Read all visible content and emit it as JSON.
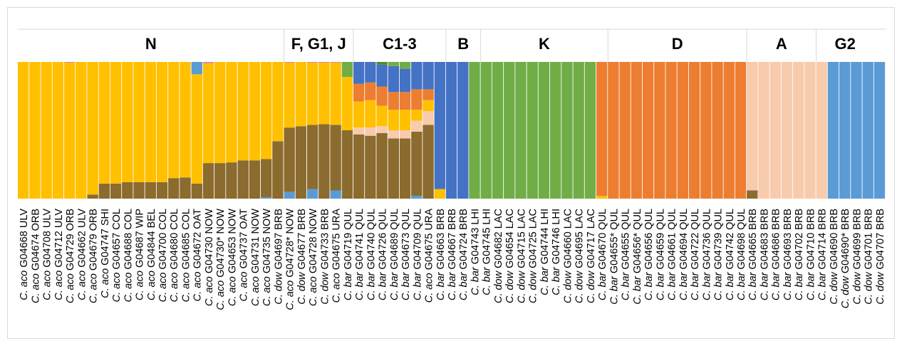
{
  "chart_data": {
    "type": "bar",
    "stacked": true,
    "normalized": true,
    "ylim": [
      0,
      1
    ],
    "colors": {
      "brown": "#8B6B2E",
      "yellow": "#FFC000",
      "lightblue": "#5B9BD5",
      "midblue": "#4472C4",
      "orange": "#ED7D31",
      "peach": "#F8CBAD",
      "green": "#70AD47",
      "darkgreen": "#4E8C2A",
      "pink": "#E2849C"
    },
    "groups": [
      {
        "label": "N",
        "start": 0,
        "end": 22
      },
      {
        "label": "F, G1, J",
        "start": 23,
        "end": 28
      },
      {
        "label": "C1-3",
        "start": 29,
        "end": 36
      },
      {
        "label": "B",
        "start": 37,
        "end": 39
      },
      {
        "label": "K",
        "start": 40,
        "end": 50
      },
      {
        "label": "D",
        "start": 51,
        "end": 62
      },
      {
        "label": "A",
        "start": 63,
        "end": 68
      },
      {
        "label": "G2",
        "start": 69,
        "end": 73
      }
    ],
    "samples": [
      {
        "sp": "aco",
        "id": "G04668",
        "pop": "ULV",
        "comp": [
          [
            "yellow",
            1.0
          ]
        ]
      },
      {
        "sp": "aco",
        "id": "G04674",
        "pop": "ORB",
        "comp": [
          [
            "yellow",
            1.0
          ]
        ]
      },
      {
        "sp": "aco",
        "id": "G04708",
        "pop": "ULV",
        "comp": [
          [
            "yellow",
            1.0
          ]
        ]
      },
      {
        "sp": "aco",
        "id": "G04712",
        "pop": "ULV",
        "comp": [
          [
            "yellow",
            1.0
          ]
        ]
      },
      {
        "sp": "aco",
        "id": "G04729",
        "pop": "ORB",
        "comp": [
          [
            "yellow",
            0.995
          ],
          [
            "pink",
            0.005
          ]
        ]
      },
      {
        "sp": "aco",
        "id": "G04662",
        "pop": "ULV",
        "comp": [
          [
            "yellow",
            1.0
          ]
        ]
      },
      {
        "sp": "aco",
        "id": "G04679",
        "pop": "ORB",
        "comp": [
          [
            "brown",
            0.03
          ],
          [
            "yellow",
            0.97
          ]
        ]
      },
      {
        "sp": "aco",
        "id": "G04747",
        "pop": "SHI",
        "comp": [
          [
            "brown",
            0.11
          ],
          [
            "yellow",
            0.89
          ]
        ]
      },
      {
        "sp": "aco",
        "id": "G04657",
        "pop": "COL",
        "comp": [
          [
            "brown",
            0.11
          ],
          [
            "yellow",
            0.89
          ]
        ]
      },
      {
        "sp": "aco",
        "id": "G04688",
        "pop": "COL",
        "comp": [
          [
            "brown",
            0.12
          ],
          [
            "yellow",
            0.88
          ]
        ]
      },
      {
        "sp": "aco",
        "id": "G04687",
        "pop": "WIP",
        "comp": [
          [
            "brown",
            0.12
          ],
          [
            "yellow",
            0.88
          ]
        ]
      },
      {
        "sp": "aco",
        "id": "G04844",
        "pop": "BEL",
        "comp": [
          [
            "brown",
            0.12
          ],
          [
            "yellow",
            0.88
          ]
        ]
      },
      {
        "sp": "aco",
        "id": "G04700",
        "pop": "COL",
        "comp": [
          [
            "brown",
            0.12
          ],
          [
            "yellow",
            0.88
          ]
        ]
      },
      {
        "sp": "aco",
        "id": "G04680",
        "pop": "COL",
        "comp": [
          [
            "brown",
            0.15
          ],
          [
            "yellow",
            0.85
          ]
        ]
      },
      {
        "sp": "aco",
        "id": "G04685",
        "pop": "COL",
        "comp": [
          [
            "brown",
            0.155
          ],
          [
            "yellow",
            0.845
          ]
        ]
      },
      {
        "sp": "aco",
        "id": "G04672",
        "pop": "OAT",
        "comp": [
          [
            "brown",
            0.11
          ],
          [
            "yellow",
            0.8
          ],
          [
            "lightblue",
            0.09
          ]
        ]
      },
      {
        "sp": "aco",
        "id": "G04730",
        "pop": "NOW",
        "comp": [
          [
            "brown",
            0.26
          ],
          [
            "yellow",
            0.73
          ],
          [
            "pink",
            0.01
          ]
        ]
      },
      {
        "sp": "aco",
        "id": "G04730*",
        "pop": "NOW",
        "comp": [
          [
            "brown",
            0.26
          ],
          [
            "yellow",
            0.74
          ]
        ]
      },
      {
        "sp": "aco",
        "id": "G04653",
        "pop": "NOW",
        "comp": [
          [
            "brown",
            0.265
          ],
          [
            "yellow",
            0.735
          ]
        ]
      },
      {
        "sp": "aco",
        "id": "G04737",
        "pop": "OAT",
        "comp": [
          [
            "brown",
            0.28
          ],
          [
            "yellow",
            0.72
          ]
        ]
      },
      {
        "sp": "aco",
        "id": "G04731",
        "pop": "NOW",
        "comp": [
          [
            "brown",
            0.28
          ],
          [
            "yellow",
            0.72
          ]
        ]
      },
      {
        "sp": "aco",
        "id": "G04735",
        "pop": "NOW",
        "comp": [
          [
            "lightblue",
            0.01
          ],
          [
            "brown",
            0.28
          ],
          [
            "yellow",
            0.71
          ]
        ]
      },
      {
        "sp": "dow",
        "id": "G04697",
        "pop": "BRB",
        "comp": [
          [
            "brown",
            0.42
          ],
          [
            "yellow",
            0.58
          ]
        ]
      },
      {
        "sp": "aco",
        "id": "G04728*",
        "pop": "NOW",
        "comp": [
          [
            "lightblue",
            0.05
          ],
          [
            "brown",
            0.47
          ],
          [
            "yellow",
            0.475
          ],
          [
            "pink",
            0.005
          ]
        ]
      },
      {
        "sp": "dow",
        "id": "G04677",
        "pop": "BRB",
        "comp": [
          [
            "brown",
            0.53
          ],
          [
            "yellow",
            0.47
          ]
        ]
      },
      {
        "sp": "aco",
        "id": "G04728",
        "pop": "NOW",
        "comp": [
          [
            "lightblue",
            0.07
          ],
          [
            "brown",
            0.47
          ],
          [
            "yellow",
            0.455
          ],
          [
            "pink",
            0.005
          ]
        ]
      },
      {
        "sp": "dow",
        "id": "G04733",
        "pop": "BRB",
        "comp": [
          [
            "brown",
            0.545
          ],
          [
            "yellow",
            0.45
          ],
          [
            "pink",
            0.005
          ]
        ]
      },
      {
        "sp": "aco",
        "id": "G04675",
        "pop": "URA",
        "comp": [
          [
            "lightblue",
            0.06
          ],
          [
            "brown",
            0.48
          ],
          [
            "yellow",
            0.455
          ],
          [
            "pink",
            0.005
          ]
        ]
      },
      {
        "sp": "bar",
        "id": "G04719",
        "pop": "QUL",
        "comp": [
          [
            "brown",
            0.5
          ],
          [
            "yellow",
            0.39
          ],
          [
            "green",
            0.11
          ]
        ]
      },
      {
        "sp": "bar",
        "id": "G04741",
        "pop": "QUL",
        "comp": [
          [
            "brown",
            0.47
          ],
          [
            "peach",
            0.05
          ],
          [
            "yellow",
            0.19
          ],
          [
            "orange",
            0.13
          ],
          [
            "midblue",
            0.16
          ]
        ]
      },
      {
        "sp": "bar",
        "id": "G04740",
        "pop": "QUL",
        "comp": [
          [
            "brown",
            0.46
          ],
          [
            "peach",
            0.06
          ],
          [
            "yellow",
            0.2
          ],
          [
            "orange",
            0.13
          ],
          [
            "midblue",
            0.15
          ]
        ]
      },
      {
        "sp": "bar",
        "id": "G04726",
        "pop": "QUL",
        "comp": [
          [
            "brown",
            0.48
          ],
          [
            "peach",
            0.05
          ],
          [
            "yellow",
            0.15
          ],
          [
            "orange",
            0.14
          ],
          [
            "midblue",
            0.16
          ],
          [
            "darkgreen",
            0.02
          ]
        ]
      },
      {
        "sp": "bar",
        "id": "G04689",
        "pop": "QUL",
        "comp": [
          [
            "brown",
            0.44
          ],
          [
            "peach",
            0.06
          ],
          [
            "yellow",
            0.15
          ],
          [
            "orange",
            0.13
          ],
          [
            "midblue",
            0.19
          ],
          [
            "green",
            0.03
          ]
        ]
      },
      {
        "sp": "bar",
        "id": "G04673",
        "pop": "QUL",
        "comp": [
          [
            "brown",
            0.44
          ],
          [
            "peach",
            0.06
          ],
          [
            "yellow",
            0.15
          ],
          [
            "orange",
            0.13
          ],
          [
            "midblue",
            0.17
          ],
          [
            "green",
            0.05
          ]
        ]
      },
      {
        "sp": "bar",
        "id": "G04709",
        "pop": "QUL",
        "comp": [
          [
            "lightblue",
            0.02
          ],
          [
            "brown",
            0.47
          ],
          [
            "peach",
            0.08
          ],
          [
            "yellow",
            0.08
          ],
          [
            "orange",
            0.15
          ],
          [
            "midblue",
            0.2
          ]
        ]
      },
      {
        "sp": "aco",
        "id": "G04675",
        "pop": "URA",
        "comp": [
          [
            "brown",
            0.54
          ],
          [
            "peach",
            0.1
          ],
          [
            "yellow",
            0.08
          ],
          [
            "orange",
            0.08
          ],
          [
            "midblue",
            0.2
          ]
        ]
      },
      {
        "sp": "bar",
        "id": "G04663",
        "pop": "BRB",
        "comp": [
          [
            "yellow",
            0.07
          ],
          [
            "midblue",
            0.93
          ]
        ]
      },
      {
        "sp": "bar",
        "id": "G04667",
        "pop": "BRB",
        "comp": [
          [
            "midblue",
            1.0
          ]
        ]
      },
      {
        "sp": "bar",
        "id": "G04724",
        "pop": "BRB",
        "comp": [
          [
            "midblue",
            1.0
          ]
        ]
      },
      {
        "sp": "bar",
        "id": "G04743",
        "pop": "LHI",
        "comp": [
          [
            "green",
            1.0
          ]
        ]
      },
      {
        "sp": "bar",
        "id": "G04745",
        "pop": "LHI",
        "comp": [
          [
            "green",
            1.0
          ]
        ]
      },
      {
        "sp": "dow",
        "id": "G04682",
        "pop": "LAC",
        "comp": [
          [
            "green",
            1.0
          ]
        ]
      },
      {
        "sp": "dow",
        "id": "G04654",
        "pop": "LAC",
        "comp": [
          [
            "green",
            1.0
          ]
        ]
      },
      {
        "sp": "dow",
        "id": "G04715",
        "pop": "LAC",
        "comp": [
          [
            "green",
            1.0
          ]
        ]
      },
      {
        "sp": "dow",
        "id": "G04725",
        "pop": "LAC",
        "comp": [
          [
            "green",
            1.0
          ]
        ]
      },
      {
        "sp": "bar",
        "id": "G04744",
        "pop": "LHI",
        "comp": [
          [
            "green",
            1.0
          ]
        ]
      },
      {
        "sp": "bar",
        "id": "G04746",
        "pop": "LHI",
        "comp": [
          [
            "green",
            1.0
          ]
        ]
      },
      {
        "sp": "dow",
        "id": "G04660",
        "pop": "LAC",
        "comp": [
          [
            "green",
            1.0
          ]
        ]
      },
      {
        "sp": "dow",
        "id": "G04695",
        "pop": "LAC",
        "comp": [
          [
            "green",
            1.0
          ]
        ]
      },
      {
        "sp": "dow",
        "id": "G04717",
        "pop": "LAC",
        "comp": [
          [
            "green",
            1.0
          ]
        ]
      },
      {
        "sp": "bar",
        "id": "G04670",
        "pop": "QUL",
        "comp": [
          [
            "yellow",
            0.02
          ],
          [
            "orange",
            0.98
          ]
        ]
      },
      {
        "sp": "bar",
        "id": "G04655*",
        "pop": "QUL",
        "comp": [
          [
            "orange",
            1.0
          ]
        ]
      },
      {
        "sp": "bar",
        "id": "G04655",
        "pop": "QUL",
        "comp": [
          [
            "orange",
            1.0
          ]
        ]
      },
      {
        "sp": "bar",
        "id": "G04656*",
        "pop": "QUL",
        "comp": [
          [
            "orange",
            1.0
          ]
        ]
      },
      {
        "sp": "bar",
        "id": "G04656",
        "pop": "QUL",
        "comp": [
          [
            "orange",
            1.0
          ]
        ]
      },
      {
        "sp": "bar",
        "id": "G04659",
        "pop": "QUL",
        "comp": [
          [
            "orange",
            1.0
          ]
        ]
      },
      {
        "sp": "bar",
        "id": "G04661",
        "pop": "QUL",
        "comp": [
          [
            "orange",
            1.0
          ]
        ]
      },
      {
        "sp": "bar",
        "id": "G04694",
        "pop": "QUL",
        "comp": [
          [
            "orange",
            1.0
          ]
        ]
      },
      {
        "sp": "bar",
        "id": "G04722",
        "pop": "QUL",
        "comp": [
          [
            "orange",
            1.0
          ]
        ]
      },
      {
        "sp": "bar",
        "id": "G04736",
        "pop": "QUL",
        "comp": [
          [
            "orange",
            1.0
          ]
        ]
      },
      {
        "sp": "bar",
        "id": "G04739",
        "pop": "QUL",
        "comp": [
          [
            "orange",
            1.0
          ]
        ]
      },
      {
        "sp": "bar",
        "id": "G04742",
        "pop": "QUL",
        "comp": [
          [
            "orange",
            1.0
          ]
        ]
      },
      {
        "sp": "bar",
        "id": "G04698",
        "pop": "QUL",
        "comp": [
          [
            "orange",
            1.0
          ]
        ]
      },
      {
        "sp": "bar",
        "id": "G04665",
        "pop": "BRB",
        "comp": [
          [
            "brown",
            0.06
          ],
          [
            "peach",
            0.94
          ]
        ]
      },
      {
        "sp": "bar",
        "id": "G04683",
        "pop": "BRB",
        "comp": [
          [
            "peach",
            1.0
          ]
        ]
      },
      {
        "sp": "bar",
        "id": "G04686",
        "pop": "BRB",
        "comp": [
          [
            "peach",
            1.0
          ]
        ]
      },
      {
        "sp": "bar",
        "id": "G04693",
        "pop": "BRB",
        "comp": [
          [
            "peach",
            1.0
          ]
        ]
      },
      {
        "sp": "bar",
        "id": "G04702",
        "pop": "BRB",
        "comp": [
          [
            "peach",
            1.0
          ]
        ]
      },
      {
        "sp": "bar",
        "id": "G04710",
        "pop": "BRB",
        "comp": [
          [
            "peach",
            1.0
          ]
        ]
      },
      {
        "sp": "bar",
        "id": "G04714",
        "pop": "BRB",
        "comp": [
          [
            "peach",
            1.0
          ]
        ]
      },
      {
        "sp": "dow",
        "id": "G04690",
        "pop": "BRB",
        "comp": [
          [
            "lightblue",
            1.0
          ]
        ]
      },
      {
        "sp": "dow",
        "id": "G04690*",
        "pop": "BRB",
        "comp": [
          [
            "lightblue",
            1.0
          ]
        ]
      },
      {
        "sp": "dow",
        "id": "G04699",
        "pop": "BRB",
        "comp": [
          [
            "lightblue",
            1.0
          ]
        ]
      },
      {
        "sp": "dow",
        "id": "G04701",
        "pop": "BRB",
        "comp": [
          [
            "lightblue",
            1.0
          ]
        ]
      },
      {
        "sp": "dow",
        "id": "G04707",
        "pop": "BRB",
        "comp": [
          [
            "lightblue",
            1.0
          ]
        ]
      }
    ]
  }
}
